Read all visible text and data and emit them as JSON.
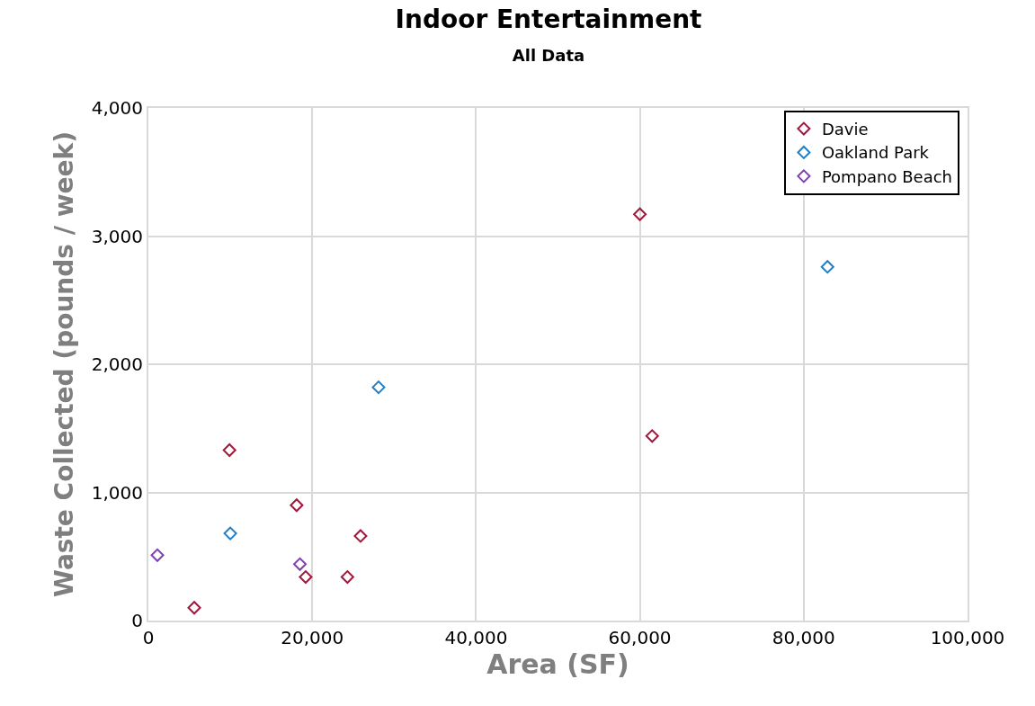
{
  "chart_data": {
    "type": "scatter",
    "title": "Indoor Entertainment",
    "subtitle": "All Data",
    "xlabel": "Area (SF)",
    "ylabel": "Waste Collected (pounds / week)",
    "xlim": [
      0,
      100000
    ],
    "xticks": [
      {
        "value": 0,
        "label": "0"
      },
      {
        "value": 20000,
        "label": "20,000"
      },
      {
        "value": 40000,
        "label": "40,000"
      },
      {
        "value": 60000,
        "label": "60,000"
      },
      {
        "value": 80000,
        "label": "80,000"
      },
      {
        "value": 100000,
        "label": "100,000"
      }
    ],
    "ylim": [
      0,
      4000
    ],
    "yticks": [
      {
        "value": 0,
        "label": "0"
      },
      {
        "value": 1000,
        "label": "1,000"
      },
      {
        "value": 2000,
        "label": "2,000"
      },
      {
        "value": 3000,
        "label": "3,000"
      },
      {
        "value": 4000,
        "label": "4,000"
      }
    ],
    "grid": true,
    "legend": "top right",
    "marker": "diamond",
    "series": [
      {
        "name": "Davie",
        "color": "#a0193c",
        "x": [
          5600,
          9900,
          18100,
          19200,
          24300,
          25900,
          60000,
          61500
        ],
        "values": [
          100,
          1330,
          900,
          340,
          340,
          660,
          3170,
          1440
        ]
      },
      {
        "name": "Oakland Park",
        "color": "#1f7fc8",
        "x": [
          10000,
          28100,
          82900
        ],
        "values": [
          680,
          1820,
          2760
        ]
      },
      {
        "name": "Pompano Beach",
        "color": "#8040b0",
        "x": [
          1100,
          18500
        ],
        "values": [
          510,
          440
        ]
      }
    ]
  }
}
